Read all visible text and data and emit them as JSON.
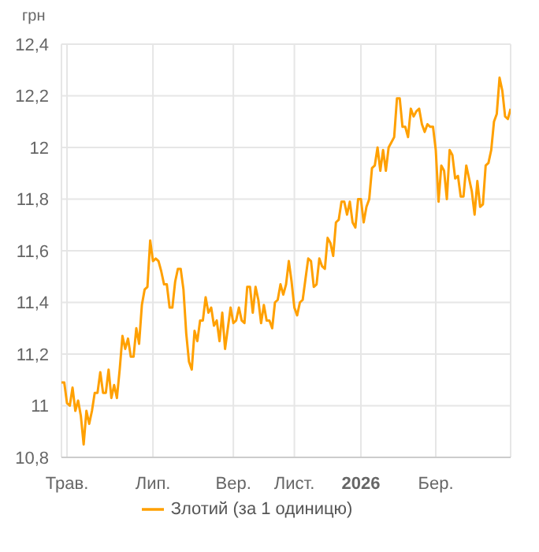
{
  "chart_data": {
    "type": "line",
    "ylabel": "грн",
    "legend": "bottom",
    "grid": true,
    "marker": "none",
    "line_style": "solid",
    "categories": [
      null,
      null,
      "Трав.",
      null,
      null,
      null,
      null,
      null,
      null,
      null,
      null,
      null,
      null,
      null,
      null,
      null,
      null,
      null,
      null,
      null,
      null,
      null,
      null,
      null,
      null,
      null,
      null,
      null,
      null,
      null,
      null,
      null,
      null,
      "Лип.",
      null,
      null,
      null,
      null,
      null,
      null,
      null,
      null,
      null,
      null,
      null,
      null,
      null,
      null,
      null,
      null,
      null,
      null,
      null,
      null,
      null,
      null,
      null,
      null,
      null,
      null,
      null,
      null,
      "Вер.",
      null,
      null,
      null,
      null,
      null,
      null,
      null,
      null,
      null,
      null,
      null,
      null,
      null,
      null,
      null,
      null,
      null,
      null,
      null,
      null,
      null,
      "Лист.",
      null,
      null,
      null,
      null,
      null,
      null,
      null,
      null,
      null,
      null,
      null,
      null,
      null,
      null,
      null,
      null,
      null,
      null,
      null,
      null,
      null,
      null,
      null,
      "2026",
      null,
      null,
      null,
      null,
      null,
      null,
      null,
      null,
      null,
      null,
      null,
      null,
      null,
      null,
      null,
      null,
      null,
      null,
      null,
      null,
      null,
      null,
      null,
      null,
      null,
      null,
      "Бер.",
      null,
      null,
      null,
      null,
      null,
      null,
      null,
      null,
      null,
      null,
      null,
      null,
      null,
      null,
      null,
      null,
      null,
      null,
      null,
      null,
      null,
      null,
      null,
      null,
      null,
      null,
      null
    ],
    "ylim": [
      10.8,
      12.4
    ],
    "yticks": [
      {
        "value": 10.8,
        "label": "10,8"
      },
      {
        "value": 11,
        "label": "11"
      },
      {
        "value": 11.2,
        "label": "11,2"
      },
      {
        "value": 11.4,
        "label": "11,4"
      },
      {
        "value": 11.6,
        "label": "11,6"
      },
      {
        "value": 11.8,
        "label": "11,8"
      },
      {
        "value": 12,
        "label": "12"
      },
      {
        "value": 12.2,
        "label": "12,2"
      },
      {
        "value": 12.4,
        "label": "12,4"
      }
    ],
    "series": [
      {
        "name": "Злотий (за 1 одиницю)",
        "color": "#ffa000",
        "values": [
          11.09,
          11.09,
          11.01,
          11.0,
          11.07,
          10.98,
          11.02,
          10.96,
          10.85,
          10.98,
          10.93,
          10.98,
          11.05,
          11.05,
          11.13,
          11.05,
          11.05,
          11.14,
          11.03,
          11.08,
          11.03,
          11.14,
          11.27,
          11.22,
          11.26,
          11.19,
          11.19,
          11.3,
          11.24,
          11.39,
          11.45,
          11.46,
          11.64,
          11.56,
          11.57,
          11.56,
          11.52,
          11.47,
          11.47,
          11.38,
          11.38,
          11.48,
          11.53,
          11.53,
          11.45,
          11.28,
          11.17,
          11.14,
          11.29,
          11.25,
          11.33,
          11.33,
          11.42,
          11.36,
          11.38,
          11.31,
          11.33,
          11.25,
          11.36,
          11.22,
          11.3,
          11.38,
          11.32,
          11.33,
          11.38,
          11.33,
          11.32,
          11.46,
          11.46,
          11.36,
          11.46,
          11.41,
          11.32,
          11.39,
          11.33,
          11.33,
          11.3,
          11.4,
          11.41,
          11.47,
          11.43,
          11.47,
          11.56,
          11.48,
          11.38,
          11.35,
          11.4,
          11.41,
          11.49,
          11.57,
          11.56,
          11.46,
          11.47,
          11.57,
          11.54,
          11.53,
          11.65,
          11.63,
          11.58,
          11.71,
          11.72,
          11.79,
          11.79,
          11.74,
          11.79,
          11.71,
          11.69,
          11.8,
          11.8,
          11.71,
          11.77,
          11.8,
          11.92,
          11.93,
          12.0,
          11.91,
          11.99,
          11.91,
          12.0,
          12.02,
          12.04,
          12.19,
          12.19,
          12.08,
          12.08,
          12.04,
          12.15,
          12.12,
          12.14,
          12.15,
          12.09,
          12.06,
          12.09,
          12.08,
          12.08,
          11.99,
          11.79,
          11.93,
          11.91,
          11.8,
          11.99,
          11.97,
          11.88,
          11.89,
          11.81,
          11.81,
          11.93,
          11.88,
          11.83,
          11.74,
          11.87,
          11.77,
          11.78,
          11.93,
          11.94,
          11.99,
          12.1,
          12.13,
          12.27,
          12.22,
          12.12,
          12.11,
          12.15
        ]
      }
    ]
  }
}
